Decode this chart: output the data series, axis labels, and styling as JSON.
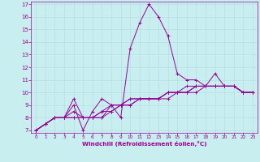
{
  "background_color": "#c8eef0",
  "line_color": "#990099",
  "grid_color": "#b0dde0",
  "xlim": [
    -0.5,
    23.5
  ],
  "ylim": [
    6.8,
    17.2
  ],
  "xticks": [
    0,
    1,
    2,
    3,
    4,
    5,
    6,
    7,
    8,
    9,
    10,
    11,
    12,
    13,
    14,
    15,
    16,
    17,
    18,
    19,
    20,
    21,
    22,
    23
  ],
  "yticks": [
    7,
    8,
    9,
    10,
    11,
    12,
    13,
    14,
    15,
    16,
    17
  ],
  "xlabel": "Windchill (Refroidissement éolien,°C)",
  "series": [
    [
      7.0,
      7.5,
      8.0,
      8.0,
      9.0,
      7.0,
      8.5,
      9.5,
      9.0,
      8.0,
      13.5,
      15.5,
      17.0,
      16.0,
      14.5,
      11.5,
      11.0,
      11.0,
      10.5,
      11.5,
      10.5,
      10.5,
      10.0,
      10.0
    ],
    [
      7.0,
      7.5,
      8.0,
      8.0,
      8.0,
      8.0,
      8.0,
      8.5,
      8.5,
      9.0,
      9.0,
      9.5,
      9.5,
      9.5,
      10.0,
      10.0,
      10.0,
      10.5,
      10.5,
      10.5,
      10.5,
      10.5,
      10.0,
      10.0
    ],
    [
      7.0,
      7.5,
      8.0,
      8.0,
      8.5,
      8.0,
      8.0,
      8.0,
      8.5,
      9.0,
      9.0,
      9.5,
      9.5,
      9.5,
      10.0,
      10.0,
      10.5,
      10.5,
      10.5,
      10.5,
      10.5,
      10.5,
      10.0,
      10.0
    ],
    [
      7.0,
      7.5,
      8.0,
      8.0,
      9.5,
      8.0,
      8.0,
      8.0,
      9.0,
      9.0,
      9.5,
      9.5,
      9.5,
      9.5,
      9.5,
      10.0,
      10.0,
      10.5,
      10.5,
      10.5,
      10.5,
      10.5,
      10.0,
      10.0
    ],
    [
      7.0,
      7.5,
      8.0,
      8.0,
      8.0,
      8.0,
      8.0,
      8.5,
      9.0,
      9.0,
      9.5,
      9.5,
      9.5,
      9.5,
      10.0,
      10.0,
      10.0,
      10.0,
      10.5,
      10.5,
      10.5,
      10.5,
      10.0,
      10.0
    ]
  ]
}
